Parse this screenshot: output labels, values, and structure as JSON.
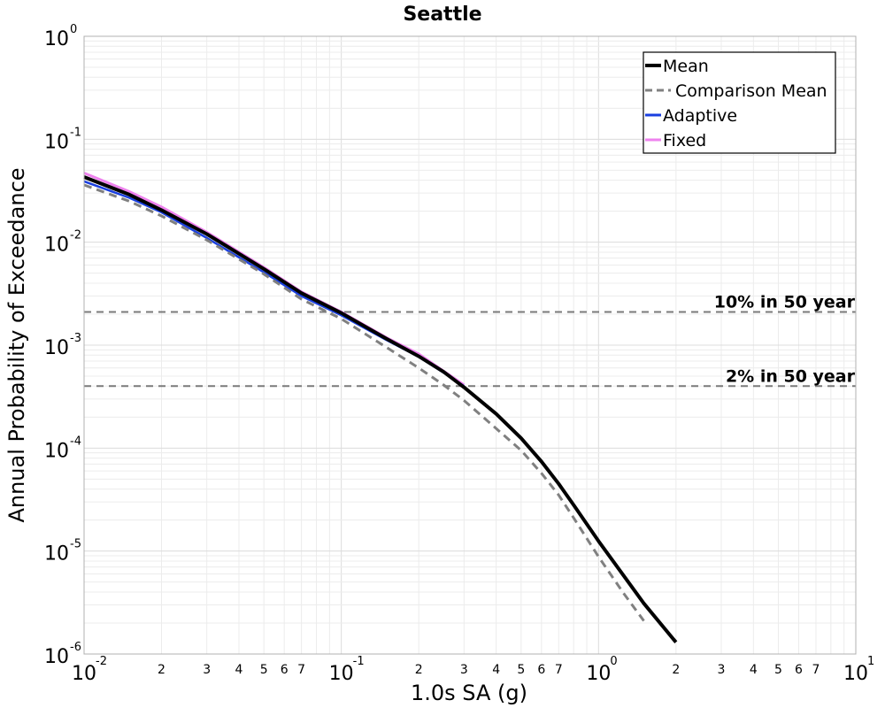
{
  "chart_data": {
    "type": "line",
    "title": "Seattle",
    "xlabel": "1.0s SA (g)",
    "ylabel": "Annual Probability of Exceedance",
    "xscale": "log",
    "yscale": "log",
    "xlim": [
      0.01,
      10
    ],
    "ylim": [
      1e-06,
      1
    ],
    "grid": true,
    "legend_position": "top-right",
    "x_tick_labels": {
      "major": [
        {
          "base": "10",
          "exp": "-2"
        },
        {
          "base": "10",
          "exp": "-1"
        },
        {
          "base": "10",
          "exp": "0"
        },
        {
          "base": "10",
          "exp": "1"
        }
      ],
      "minor": [
        "2",
        "3",
        "4",
        "5",
        "6",
        "7"
      ]
    },
    "y_tick_labels": [
      {
        "base": "10",
        "exp": "0"
      },
      {
        "base": "10",
        "exp": "-1"
      },
      {
        "base": "10",
        "exp": "-2"
      },
      {
        "base": "10",
        "exp": "-3"
      },
      {
        "base": "10",
        "exp": "-4"
      },
      {
        "base": "10",
        "exp": "-5"
      },
      {
        "base": "10",
        "exp": "-6"
      }
    ],
    "reference_lines": [
      {
        "label": "10% in 50 year",
        "y": 0.0021
      },
      {
        "label": "2% in 50 year",
        "y": 0.0004
      }
    ],
    "series": [
      {
        "name": "Fixed",
        "color": "#ee82ee",
        "dash": "solid",
        "points": [
          [
            0.01,
            0.047
          ],
          [
            0.015,
            0.031
          ],
          [
            0.02,
            0.022
          ],
          [
            0.03,
            0.0125
          ],
          [
            0.05,
            0.0057
          ],
          [
            0.07,
            0.0033
          ],
          [
            0.1,
            0.0021
          ],
          [
            0.15,
            0.00118
          ],
          [
            0.2,
            0.00082
          ],
          [
            0.25,
            0.00056
          ],
          [
            0.3,
            0.00041
          ]
        ]
      },
      {
        "name": "Adaptive",
        "color": "#1a3fe0",
        "dash": "solid",
        "points": [
          [
            0.01,
            0.039
          ],
          [
            0.015,
            0.027
          ],
          [
            0.02,
            0.0195
          ],
          [
            0.03,
            0.011
          ],
          [
            0.05,
            0.0051
          ],
          [
            0.07,
            0.003
          ],
          [
            0.1,
            0.00195
          ],
          [
            0.15,
            0.00112
          ],
          [
            0.2,
            0.00077
          ],
          [
            0.25,
            0.00054
          ],
          [
            0.3,
            0.0004
          ]
        ]
      },
      {
        "name": "Comparison Mean",
        "color": "#808080",
        "dash": "dashed",
        "points": [
          [
            0.01,
            0.036
          ],
          [
            0.015,
            0.025
          ],
          [
            0.02,
            0.018
          ],
          [
            0.03,
            0.0105
          ],
          [
            0.05,
            0.0049
          ],
          [
            0.07,
            0.0028
          ],
          [
            0.1,
            0.0018
          ],
          [
            0.15,
            0.00095
          ],
          [
            0.2,
            0.0006
          ],
          [
            0.25,
            0.00041
          ],
          [
            0.3,
            0.00029
          ],
          [
            0.4,
            0.000155
          ],
          [
            0.5,
            9.5e-05
          ],
          [
            0.6,
            5.7e-05
          ],
          [
            0.7,
            3.5e-05
          ],
          [
            0.8,
            2.1e-05
          ],
          [
            1.0,
            8.8e-06
          ],
          [
            1.25,
            3.9e-06
          ],
          [
            1.5,
            2.1e-06
          ],
          [
            2.0,
            9.5e-07
          ]
        ]
      },
      {
        "name": "Mean",
        "color": "#000000",
        "dash": "solid",
        "points": [
          [
            0.01,
            0.043
          ],
          [
            0.015,
            0.029
          ],
          [
            0.02,
            0.0205
          ],
          [
            0.03,
            0.012
          ],
          [
            0.05,
            0.0055
          ],
          [
            0.07,
            0.0032
          ],
          [
            0.1,
            0.00205
          ],
          [
            0.15,
            0.00115
          ],
          [
            0.2,
            0.00078
          ],
          [
            0.25,
            0.00055
          ],
          [
            0.3,
            0.00039
          ],
          [
            0.4,
            0.000215
          ],
          [
            0.5,
            0.000125
          ],
          [
            0.6,
            7.4e-05
          ],
          [
            0.7,
            4.5e-05
          ],
          [
            0.8,
            2.8e-05
          ],
          [
            1.0,
            1.25e-05
          ],
          [
            1.25,
            5.8e-06
          ],
          [
            1.5,
            3.1e-06
          ],
          [
            2.0,
            1.3e-06
          ],
          [
            2.2,
            9e-07
          ]
        ]
      }
    ],
    "legend": [
      "Mean",
      "Comparison Mean",
      "Adaptive",
      "Fixed"
    ]
  }
}
